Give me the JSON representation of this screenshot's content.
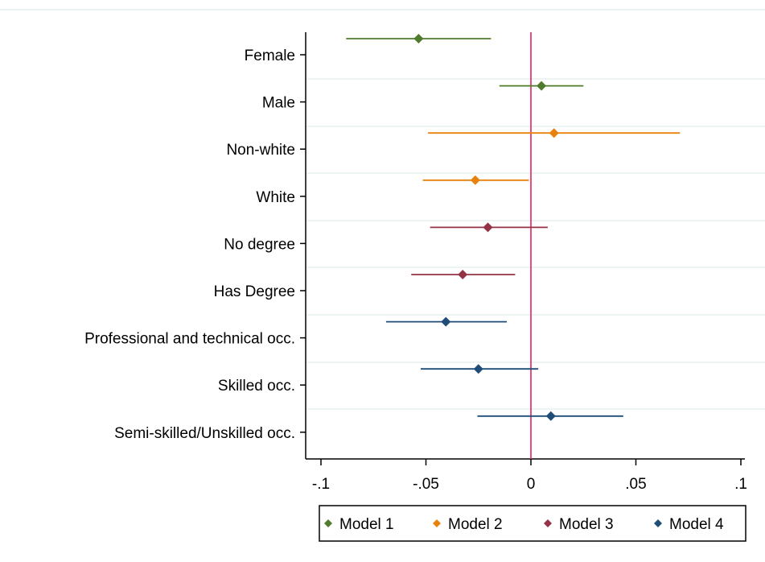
{
  "chart_data": {
    "type": "scatter",
    "title": "",
    "xlabel": "",
    "ylabel": "",
    "xlim": [
      -0.1,
      0.1
    ],
    "x_ticks": [
      {
        "value": -0.1,
        "label": "-.1"
      },
      {
        "value": -0.05,
        "label": "-.05"
      },
      {
        "value": 0,
        "label": "0"
      },
      {
        "value": 0.05,
        "label": ".05"
      },
      {
        "value": 0.1,
        "label": ".1"
      }
    ],
    "reference_line": {
      "x": 0,
      "color": "#e0235c"
    },
    "grid": true,
    "legend_position": "bottom",
    "categories": [
      "Female",
      "Male",
      "Non-white",
      "White",
      "No degree",
      "Has Degree",
      "Professional and technical occ.",
      "Skilled occ.",
      "Semi-skilled/Unskilled occ."
    ],
    "series": [
      {
        "name": "Model 1",
        "color": "#4f7b2c",
        "points": [
          {
            "category": "Female",
            "estimate": -0.0535,
            "lower": -0.088,
            "upper": -0.019
          },
          {
            "category": "Male",
            "estimate": 0.005,
            "lower": -0.015,
            "upper": 0.025
          }
        ]
      },
      {
        "name": "Model 2",
        "color": "#e8820d",
        "points": [
          {
            "category": "Non-white",
            "estimate": 0.011,
            "lower": -0.049,
            "upper": 0.071
          },
          {
            "category": "White",
            "estimate": -0.0265,
            "lower": -0.0515,
            "upper": -0.001
          }
        ]
      },
      {
        "name": "Model 3",
        "color": "#943345",
        "points": [
          {
            "category": "No degree",
            "estimate": -0.0205,
            "lower": -0.048,
            "upper": 0.008
          },
          {
            "category": "Has Degree",
            "estimate": -0.0325,
            "lower": -0.057,
            "upper": -0.0075
          }
        ]
      },
      {
        "name": "Model 4",
        "color": "#1f4d78",
        "points": [
          {
            "category": "Professional and technical occ.",
            "estimate": -0.0405,
            "lower": -0.069,
            "upper": -0.0115
          },
          {
            "category": "Skilled occ.",
            "estimate": -0.025,
            "lower": -0.0525,
            "upper": 0.0035
          },
          {
            "category": "Semi-skilled/Unskilled occ.",
            "estimate": 0.0095,
            "lower": -0.0255,
            "upper": 0.044
          }
        ]
      }
    ]
  }
}
